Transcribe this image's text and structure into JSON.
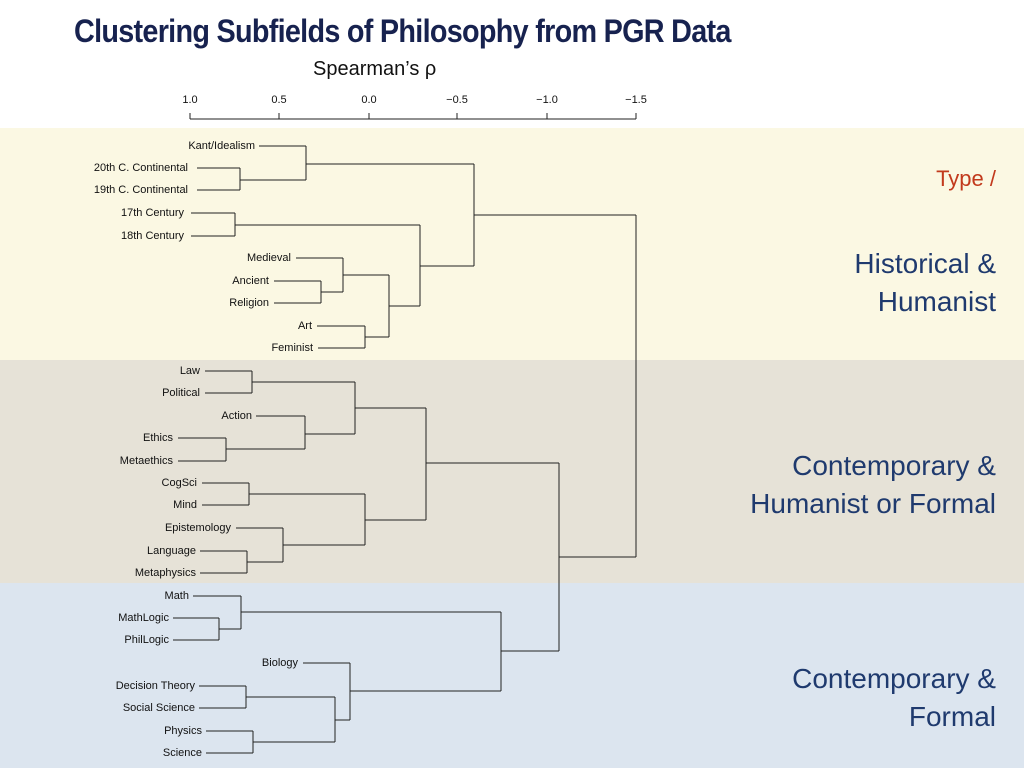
{
  "title": "Clustering Subfields of Philosophy from PGR Data",
  "axis": {
    "title": "Spearman’s ρ",
    "ticks": [
      "1.0",
      "0.5",
      "0.0",
      "−0.5",
      "−1.0",
      "−1.5"
    ]
  },
  "type_label": "Type /",
  "groups": {
    "historical": {
      "line1": "Historical &",
      "line2": "Humanist"
    },
    "contemporary_mixed": {
      "line1": "Contemporary &",
      "line2": "Humanist or Formal"
    },
    "contemporary_formal": {
      "line1": "Contemporary &",
      "line2": "Formal"
    }
  },
  "leaves": [
    "Kant/Idealism",
    "20th C. Continental",
    "19th C. Continental",
    "17th Century",
    "18th Century",
    "Medieval",
    "Ancient",
    "Religion",
    "Art",
    "Feminist",
    "Law",
    "Political",
    "Action",
    "Ethics",
    "Metaethics",
    "CogSci",
    "Mind",
    "Epistemology",
    "Language",
    "Metaphysics",
    "Math",
    "MathLogic",
    "PhilLogic",
    "Biology",
    "Decision Theory",
    "Social Science",
    "Physics",
    "Science"
  ]
}
